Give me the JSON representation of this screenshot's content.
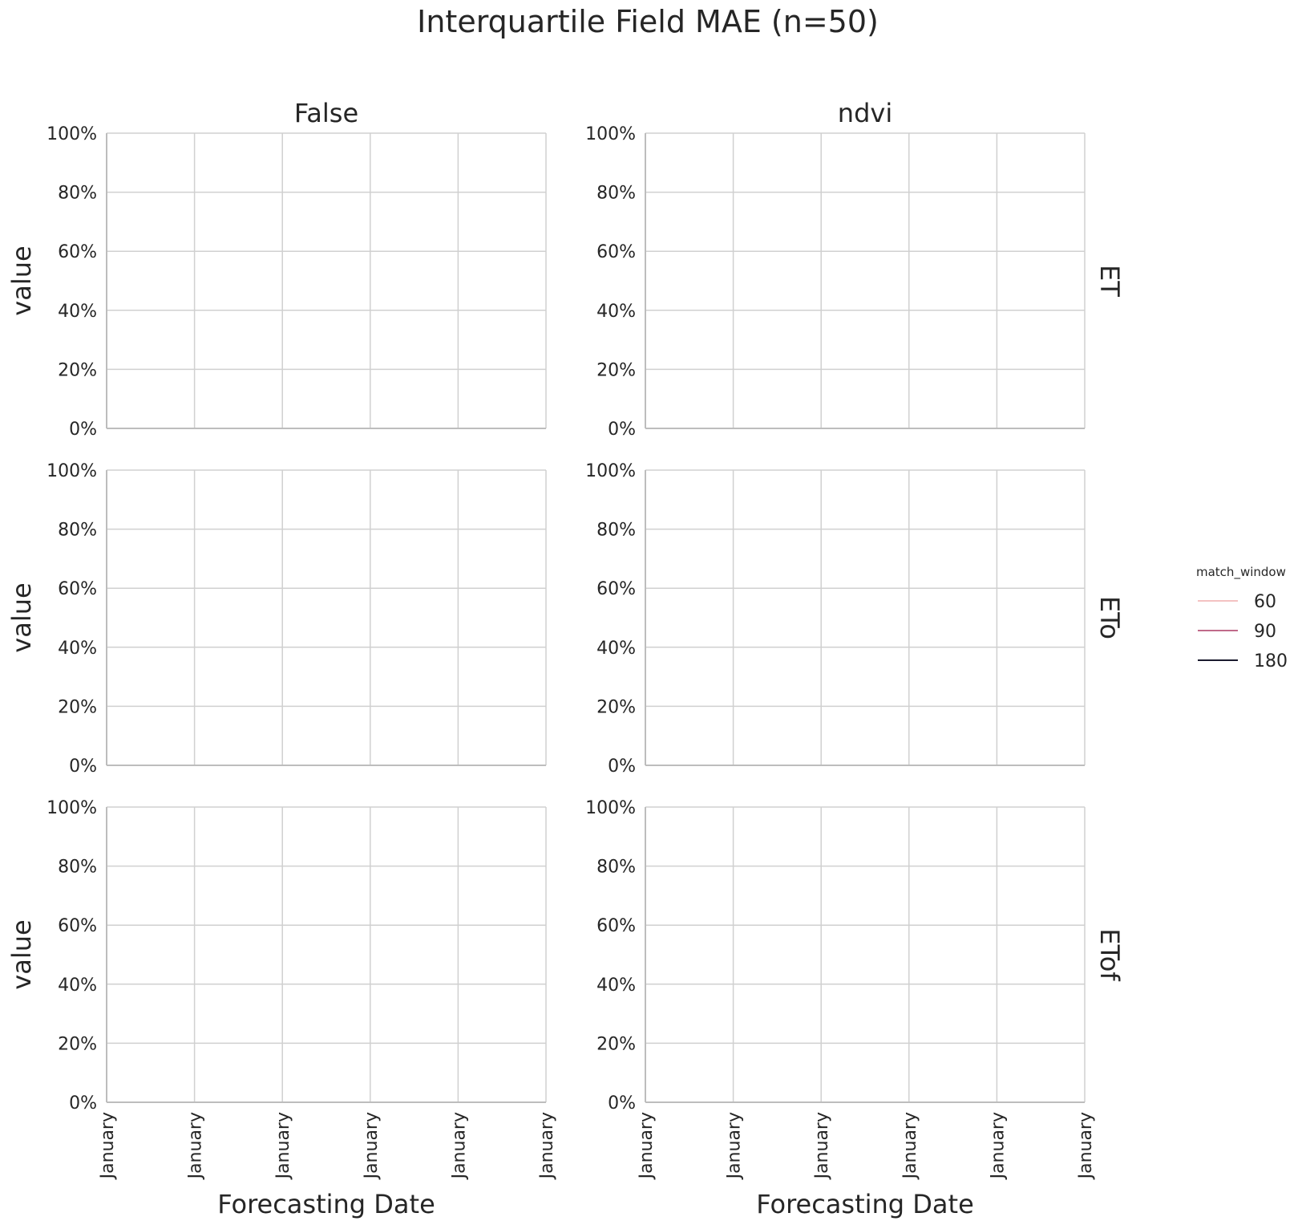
{
  "chart_data": {
    "type": "line",
    "title": "Interquartile Field MAE (n=50)",
    "columns": [
      "False",
      "ndvi"
    ],
    "rows": [
      "ET",
      "ETo",
      "ETof"
    ],
    "ylabel": "value",
    "xlabel": "Forecasting Date",
    "yticks": [
      "0%",
      "20%",
      "40%",
      "60%",
      "80%",
      "100%"
    ],
    "ylim": [
      0,
      1
    ],
    "xticks": [
      "January",
      "January",
      "January",
      "January",
      "January",
      "January"
    ],
    "grid": true,
    "legend": {
      "title": "match_window",
      "placement": "right",
      "entries": [
        {
          "label": "60",
          "color": "#f4c2c2"
        },
        {
          "label": "90",
          "color": "#c06a8a"
        },
        {
          "label": "180",
          "color": "#1a1a2e"
        }
      ]
    },
    "series": []
  }
}
